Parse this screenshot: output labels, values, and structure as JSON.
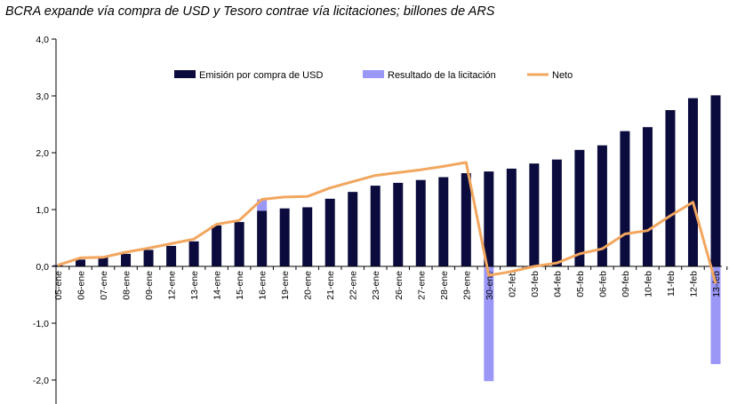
{
  "chart_data": {
    "type": "bar",
    "subtitle": "BCRA expande vía compra de USD y Tesoro contrae vía licitaciones; billones de ARS",
    "categories": [
      "05-ene",
      "06-ene",
      "07-ene",
      "08-ene",
      "09-ene",
      "12-ene",
      "13-ene",
      "14-ene",
      "15-ene",
      "16-ene",
      "19-ene",
      "20-ene",
      "21-ene",
      "22-ene",
      "23-ene",
      "26-ene",
      "27-ene",
      "28-ene",
      "29-ene",
      "30-ene",
      "02-feb",
      "03-feb",
      "04-feb",
      "05-feb",
      "06-feb",
      "09-feb",
      "10-feb",
      "11-feb",
      "12-feb",
      "13-feb"
    ],
    "series": [
      {
        "name": "Emisión por compra de USD",
        "type": "bar",
        "color": "#0b0b3d",
        "values": [
          0.02,
          0.12,
          0.16,
          0.22,
          0.29,
          0.36,
          0.44,
          0.72,
          0.78,
          0.98,
          1.02,
          1.04,
          1.19,
          1.31,
          1.42,
          1.47,
          1.52,
          1.57,
          1.64,
          1.67,
          1.72,
          1.81,
          1.88,
          2.05,
          2.13,
          2.38,
          2.45,
          2.75,
          2.96,
          3.01
        ]
      },
      {
        "name": "Resultado de la licitación",
        "type": "bar",
        "color": "#9a97f7",
        "values": [
          0,
          0,
          0,
          0,
          0,
          0,
          0,
          0,
          0,
          0.2,
          0,
          0,
          0,
          0,
          0,
          0,
          0,
          0,
          0,
          -2.02,
          0,
          0,
          0,
          0,
          0,
          0,
          0,
          0,
          0,
          -1.72
        ]
      },
      {
        "name": "Neto",
        "type": "line",
        "color": "#f2a65e",
        "values": [
          0.02,
          0.15,
          0.16,
          0.25,
          0.32,
          0.4,
          0.48,
          0.74,
          0.81,
          1.18,
          1.22,
          1.23,
          1.38,
          1.49,
          1.6,
          1.65,
          1.7,
          1.76,
          1.83,
          -0.16,
          -0.09,
          0.0,
          0.06,
          0.22,
          0.31,
          0.57,
          0.63,
          0.89,
          1.13,
          -0.3
        ]
      }
    ],
    "yticks": [
      "4,0",
      "3,0",
      "2,0",
      "1,0",
      "0,0",
      "-1,0",
      "-2,0"
    ],
    "ytick_values": [
      4,
      3,
      2,
      1,
      0,
      -1,
      -2
    ],
    "ylim": [
      -2.3,
      4.0
    ],
    "legend_position": "top",
    "grid": false
  }
}
